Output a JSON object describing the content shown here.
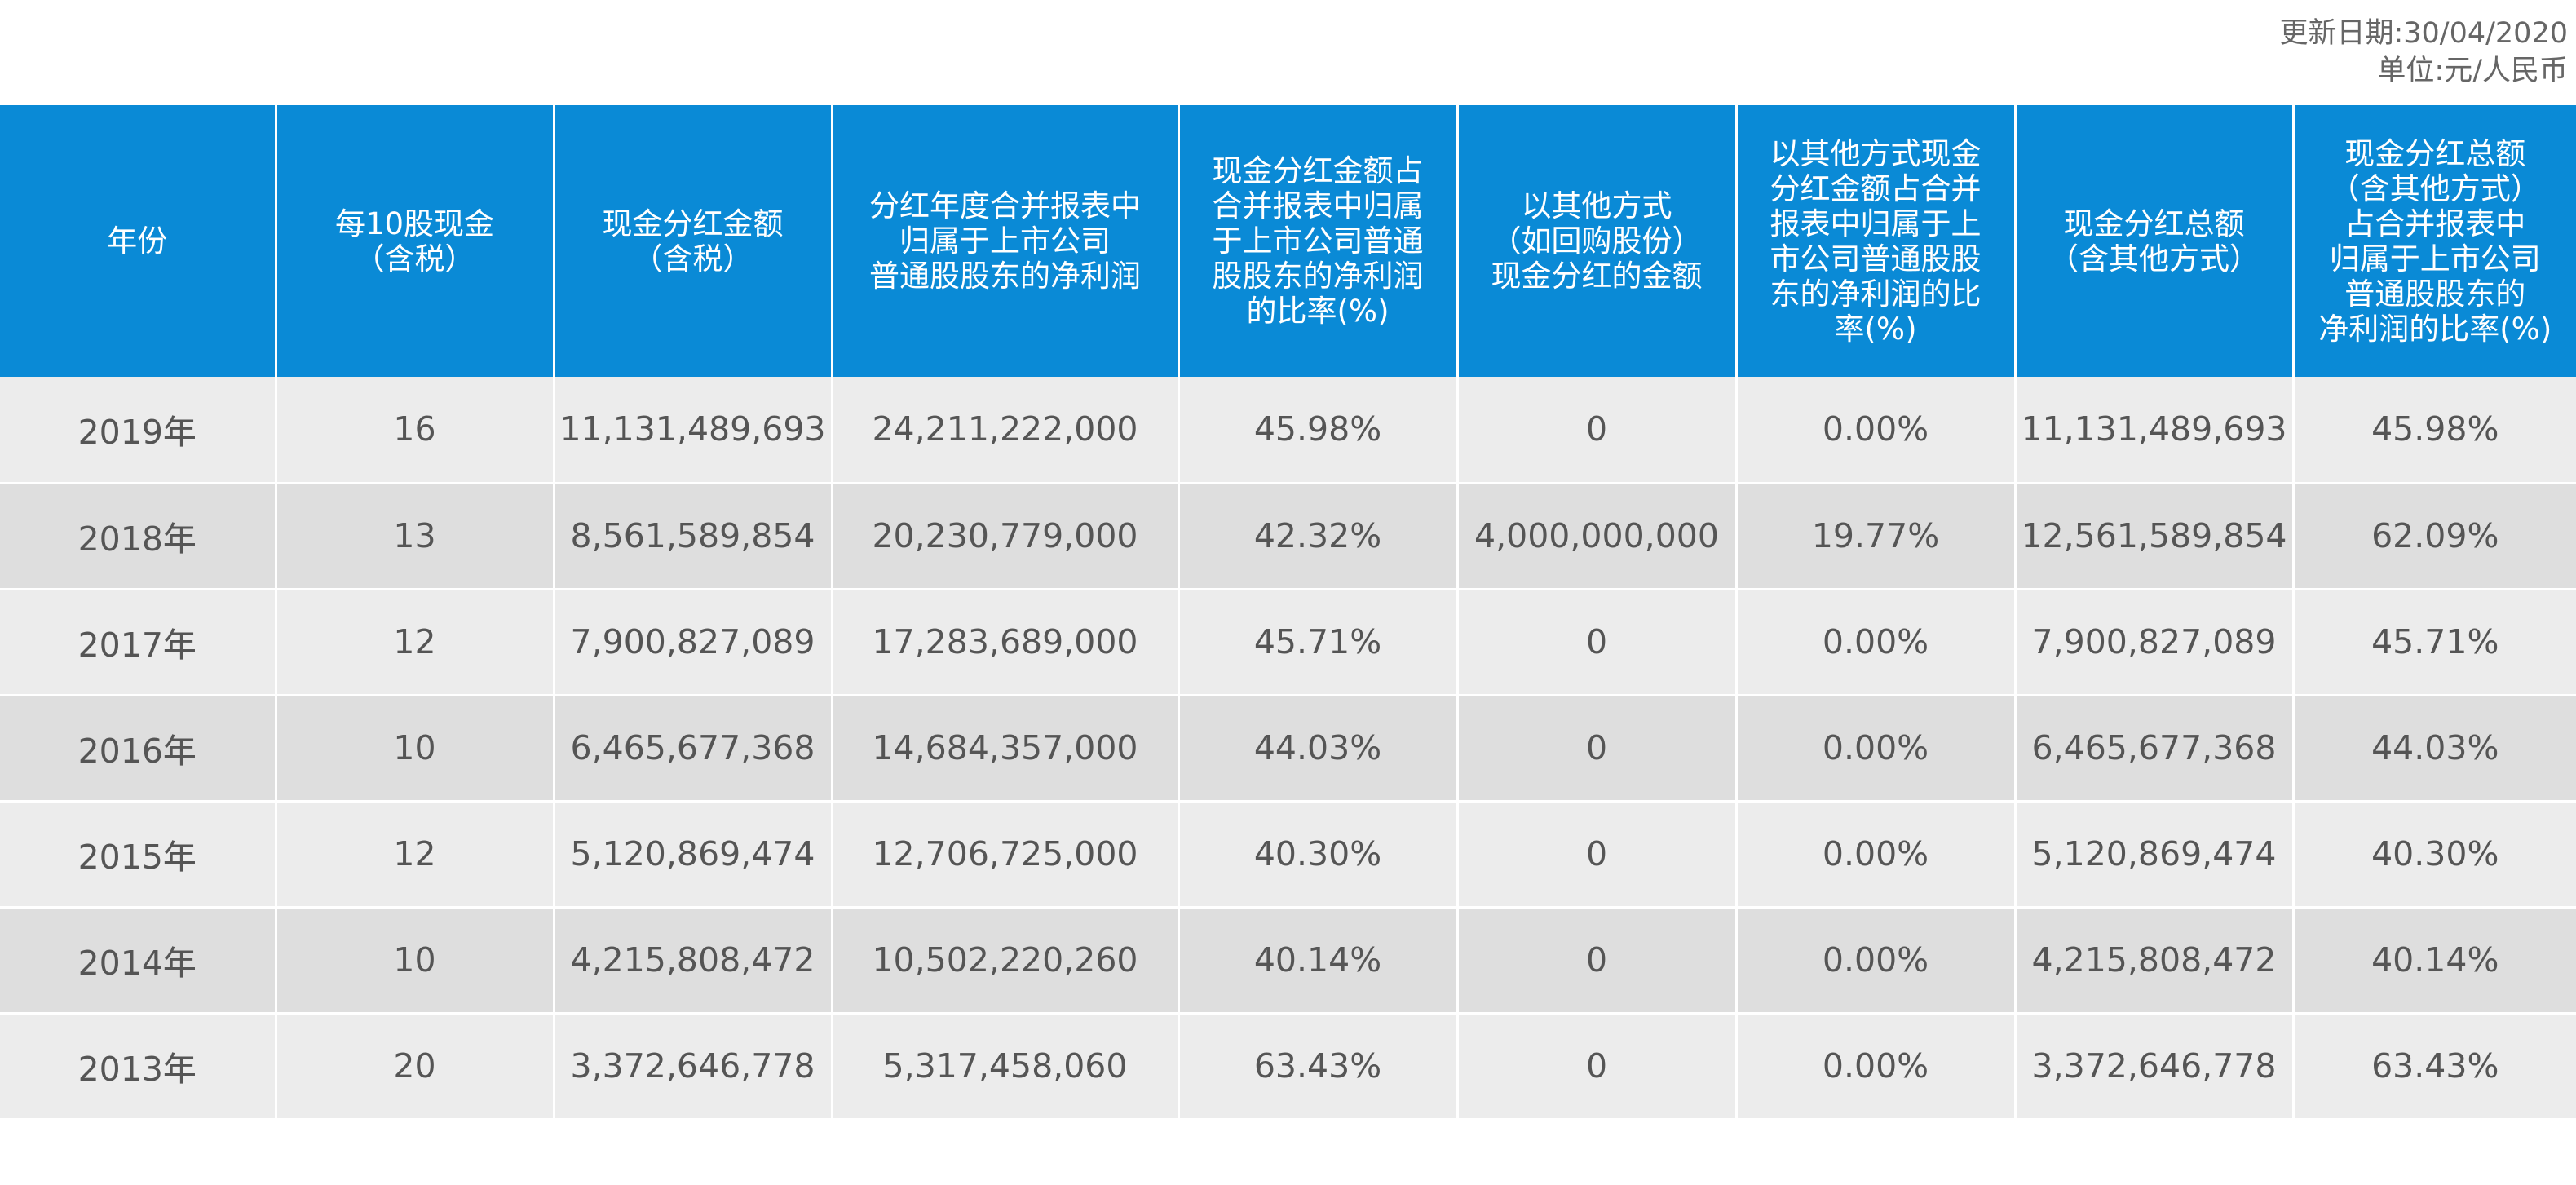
{
  "meta": {
    "update_date": "更新日期:30/04/2020",
    "unit": "单位:元/人民币"
  },
  "table": {
    "headers": [
      "年份",
      "每10股现金\n（含税）",
      "现金分红金额\n（含税）",
      "分红年度合并报表中\n归属于上市公司\n普通股股东的净利润",
      "现金分红金额占\n合并报表中归属\n于上市公司普通\n股股东的净利润\n的比率(%)",
      "以其他方式\n（如回购股份）\n现金分红的金额",
      "以其他方式现金\n分红金额占合并\n报表中归属于上\n市公司普通股股\n东的净利润的比\n率(%)",
      "现金分红总额\n（含其他方式）",
      "现金分红总额\n（含其他方式）\n占合并报表中\n归属于上市公司\n普通股股东的\n净利润的比率(%)"
    ],
    "rows": [
      [
        "2019年",
        "16",
        "11,131,489,693",
        "24,211,222,000",
        "45.98%",
        "0",
        "0.00%",
        "11,131,489,693",
        "45.98%"
      ],
      [
        "2018年",
        "13",
        "8,561,589,854",
        "20,230,779,000",
        "42.32%",
        "4,000,000,000",
        "19.77%",
        "12,561,589,854",
        "62.09%"
      ],
      [
        "2017年",
        "12",
        "7,900,827,089",
        "17,283,689,000",
        "45.71%",
        "0",
        "0.00%",
        "7,900,827,089",
        "45.71%"
      ],
      [
        "2016年",
        "10",
        "6,465,677,368",
        "14,684,357,000",
        "44.03%",
        "0",
        "0.00%",
        "6,465,677,368",
        "44.03%"
      ],
      [
        "2015年",
        "12",
        "5,120,869,474",
        "12,706,725,000",
        "40.30%",
        "0",
        "0.00%",
        "5,120,869,474",
        "40.30%"
      ],
      [
        "2014年",
        "10",
        "4,215,808,472",
        "10,502,220,260",
        "40.14%",
        "0",
        "0.00%",
        "4,215,808,472",
        "40.14%"
      ],
      [
        "2013年",
        "20",
        "3,372,646,778",
        "5,317,458,060",
        "63.43%",
        "0",
        "0.00%",
        "3,372,646,778",
        "63.43%"
      ]
    ]
  },
  "colors": {
    "header_bg": "#0a8ad6",
    "row_light": "#ececec",
    "row_dark": "#dedede"
  }
}
